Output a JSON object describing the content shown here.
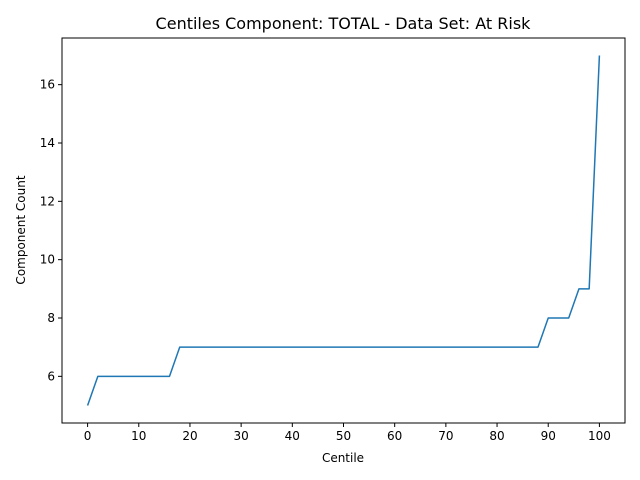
{
  "chart_data": {
    "type": "line",
    "title": "Centiles Component: TOTAL - Data Set: At Risk",
    "xlabel": "Centile",
    "ylabel": "Component Count",
    "xlim": [
      -5,
      105
    ],
    "ylim": [
      4.4,
      17.6
    ],
    "xticks": [
      0,
      10,
      20,
      30,
      40,
      50,
      60,
      70,
      80,
      90,
      100
    ],
    "yticks": [
      6,
      8,
      10,
      12,
      14,
      16
    ],
    "grid": false,
    "line_color": "#1f77b4",
    "series": [
      {
        "x": [
          0,
          2,
          16,
          18,
          88,
          90,
          94,
          96,
          98,
          100
        ],
        "y": [
          5,
          6,
          6,
          7,
          7,
          8,
          8,
          9,
          9,
          17
        ]
      }
    ]
  }
}
